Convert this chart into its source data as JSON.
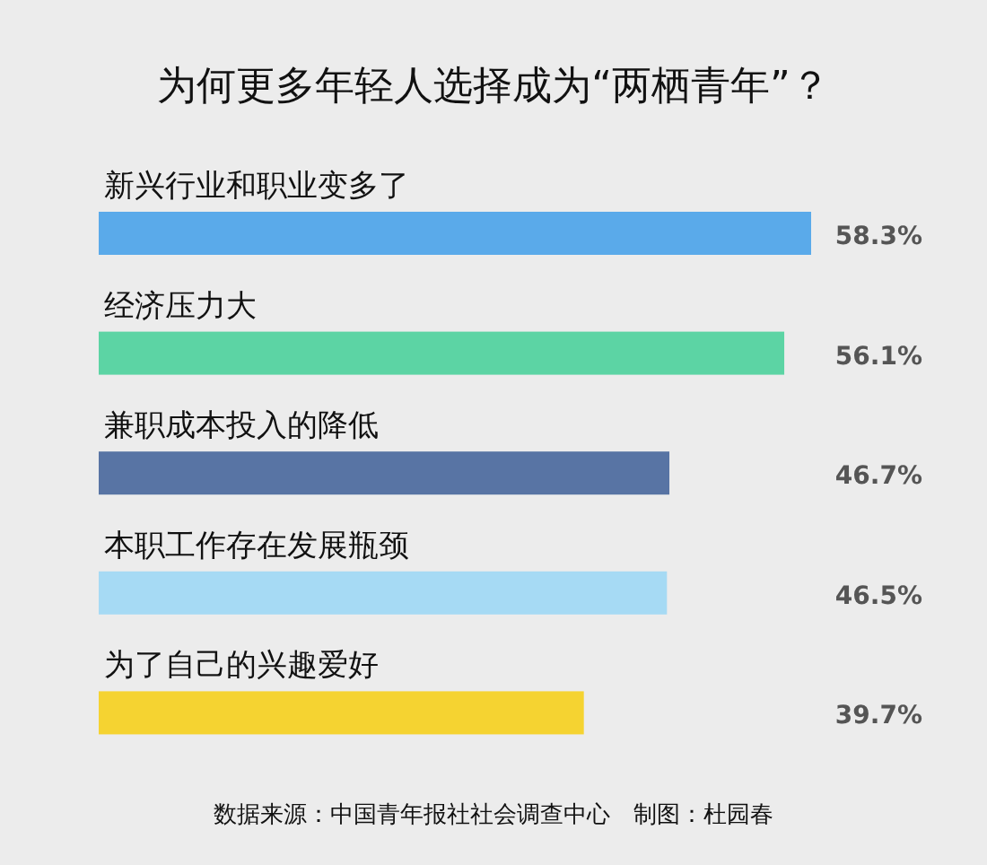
{
  "chart_data": {
    "type": "bar",
    "orientation": "horizontal",
    "title": "为何更多年轻人选择成为“两栖青年”？",
    "categories": [
      "新兴行业和职业变多了",
      "经济压力大",
      "兼职成本投入的降低",
      "本职工作存在发展瓶颈",
      "为了自己的兴趣爱好"
    ],
    "values": [
      58.3,
      56.1,
      46.7,
      46.5,
      39.7
    ],
    "colors": [
      "#5aaaea",
      "#5cd4a4",
      "#5874a4",
      "#a6daf4",
      "#f5d331"
    ],
    "value_labels": [
      "58.3%",
      "56.1%",
      "46.7%",
      "46.5%",
      "39.7%"
    ],
    "annotations": [
      "数据来源：中国青年报社社会调查中心　制图：杜园春"
    ]
  }
}
